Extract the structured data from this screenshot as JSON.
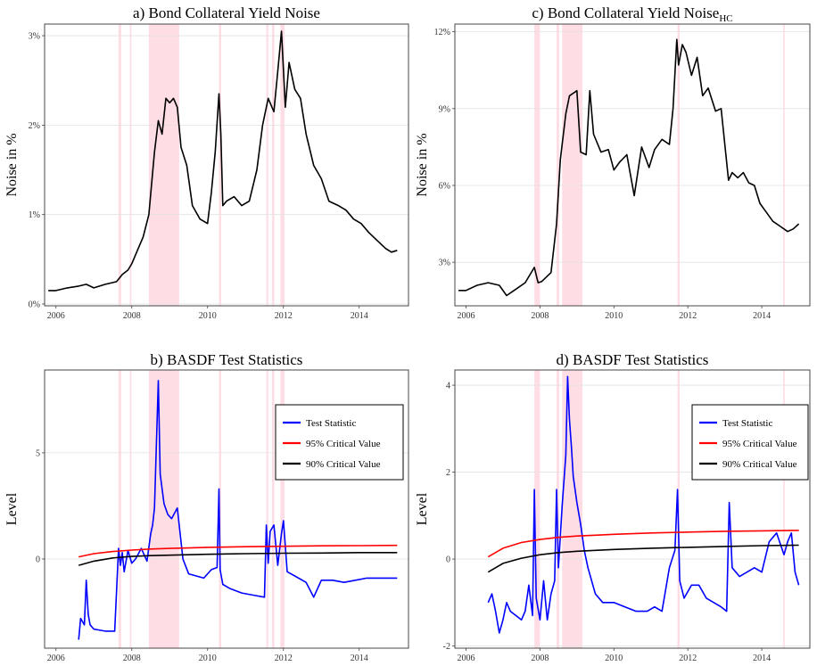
{
  "chart_data": [
    {
      "id": "a",
      "type": "line",
      "title": "a) Bond Collateral Yield Noise",
      "title_sub": "",
      "ylabel": "Noise in %",
      "xlabel": "",
      "xlim": [
        2005.7,
        2015.3
      ],
      "ylim": [
        -0.02,
        3.13
      ],
      "xticks": [
        "2006",
        "2008",
        "2010",
        "2012",
        "2014"
      ],
      "yticks": [
        "0%",
        "1%",
        "2%",
        "3%"
      ],
      "grid": true,
      "shaded_periods": [
        [
          2007.65,
          2007.72
        ],
        [
          2007.95,
          2007.99
        ],
        [
          2008.45,
          2009.25
        ],
        [
          2010.3,
          2010.36
        ],
        [
          2011.55,
          2011.6
        ],
        [
          2011.7,
          2011.76
        ],
        [
          2011.92,
          2012.03
        ]
      ],
      "series": [
        {
          "color": "#000000",
          "x": [
            2005.8,
            2006.0,
            2006.3,
            2006.6,
            2006.8,
            2007.0,
            2007.3,
            2007.6,
            2007.75,
            2007.9,
            2008.0,
            2008.15,
            2008.3,
            2008.45,
            2008.6,
            2008.7,
            2008.8,
            2008.9,
            2009.0,
            2009.1,
            2009.2,
            2009.3,
            2009.45,
            2009.6,
            2009.8,
            2010.0,
            2010.1,
            2010.2,
            2010.3,
            2010.35,
            2010.4,
            2010.5,
            2010.7,
            2010.9,
            2011.1,
            2011.3,
            2011.45,
            2011.6,
            2011.75,
            2011.85,
            2011.95,
            2012.05,
            2012.15,
            2012.3,
            2012.45,
            2012.6,
            2012.8,
            2013.0,
            2013.2,
            2013.45,
            2013.65,
            2013.85,
            2014.05,
            2014.25,
            2014.5,
            2014.7,
            2014.85,
            2015.0
          ],
          "y": [
            0.15,
            0.15,
            0.18,
            0.2,
            0.22,
            0.18,
            0.22,
            0.25,
            0.33,
            0.38,
            0.45,
            0.6,
            0.75,
            1.0,
            1.7,
            2.05,
            1.9,
            2.3,
            2.25,
            2.3,
            2.2,
            1.75,
            1.55,
            1.1,
            0.95,
            0.9,
            1.25,
            1.7,
            2.35,
            1.9,
            1.1,
            1.15,
            1.2,
            1.1,
            1.15,
            1.5,
            2.0,
            2.3,
            2.15,
            2.6,
            3.05,
            2.2,
            2.7,
            2.4,
            2.3,
            1.9,
            1.55,
            1.4,
            1.15,
            1.1,
            1.05,
            0.95,
            0.9,
            0.8,
            0.7,
            0.62,
            0.58,
            0.6
          ]
        }
      ]
    },
    {
      "id": "c",
      "type": "line",
      "title": "c) Bond Collateral Yield Noise",
      "title_sub": "HC",
      "ylabel": "Noise in %",
      "xlabel": "",
      "xlim": [
        2005.7,
        2015.3
      ],
      "ylim": [
        1.3,
        12.3
      ],
      "xticks": [
        "2006",
        "2008",
        "2010",
        "2012",
        "2014"
      ],
      "yticks": [
        "3%",
        "6%",
        "9%",
        "12%"
      ],
      "grid": true,
      "shaded_periods": [
        [
          2007.85,
          2008.0
        ],
        [
          2008.45,
          2008.52
        ],
        [
          2008.6,
          2009.15
        ],
        [
          2011.72,
          2011.78
        ],
        [
          2014.58,
          2014.62
        ]
      ],
      "series": [
        {
          "color": "#000000",
          "x": [
            2005.8,
            2006.0,
            2006.3,
            2006.6,
            2006.9,
            2007.1,
            2007.3,
            2007.6,
            2007.85,
            2007.95,
            2008.05,
            2008.3,
            2008.45,
            2008.55,
            2008.7,
            2008.8,
            2008.9,
            2009.0,
            2009.1,
            2009.25,
            2009.35,
            2009.45,
            2009.65,
            2009.85,
            2010.0,
            2010.15,
            2010.35,
            2010.55,
            2010.75,
            2010.95,
            2011.1,
            2011.3,
            2011.5,
            2011.6,
            2011.7,
            2011.75,
            2011.85,
            2011.95,
            2012.1,
            2012.25,
            2012.4,
            2012.55,
            2012.75,
            2012.9,
            2013.1,
            2013.2,
            2013.35,
            2013.5,
            2013.65,
            2013.8,
            2013.95,
            2014.1,
            2014.3,
            2014.5,
            2014.7,
            2014.85,
            2015.0
          ],
          "y": [
            1.9,
            1.9,
            2.1,
            2.2,
            2.1,
            1.7,
            1.9,
            2.2,
            2.8,
            2.2,
            2.25,
            2.6,
            4.5,
            7.0,
            8.8,
            9.5,
            9.6,
            9.7,
            7.3,
            7.2,
            9.7,
            8.0,
            7.3,
            7.4,
            6.6,
            6.9,
            7.2,
            5.6,
            7.5,
            6.7,
            7.4,
            7.8,
            7.6,
            9.0,
            11.7,
            10.7,
            11.5,
            11.2,
            10.3,
            11.0,
            9.5,
            9.8,
            8.9,
            9.0,
            6.2,
            6.5,
            6.3,
            6.5,
            6.1,
            6.0,
            5.3,
            5.0,
            4.6,
            4.4,
            4.2,
            4.3,
            4.5
          ]
        }
      ]
    },
    {
      "id": "b",
      "type": "line",
      "title": "b) BASDF Test Statistics",
      "title_sub": "",
      "ylabel": "Level",
      "xlabel": "",
      "xlim": [
        2005.7,
        2015.3
      ],
      "ylim": [
        -4.2,
        8.9
      ],
      "xticks": [
        "2006",
        "2008",
        "2010",
        "2012",
        "2014"
      ],
      "yticks": [
        "0",
        "5"
      ],
      "grid": true,
      "legend": "top-right",
      "shaded_periods": [
        [
          2007.65,
          2007.72
        ],
        [
          2007.95,
          2007.99
        ],
        [
          2008.45,
          2009.25
        ],
        [
          2010.3,
          2010.36
        ],
        [
          2011.55,
          2011.6
        ],
        [
          2011.7,
          2011.76
        ],
        [
          2011.92,
          2012.03
        ]
      ],
      "series": [
        {
          "name": "Test Statistic",
          "color": "#0000ff",
          "x": [
            2006.6,
            2006.65,
            2006.75,
            2006.8,
            2006.85,
            2006.9,
            2007.0,
            2007.3,
            2007.55,
            2007.65,
            2007.7,
            2007.75,
            2007.8,
            2007.9,
            2008.0,
            2008.1,
            2008.25,
            2008.4,
            2008.5,
            2008.55,
            2008.6,
            2008.7,
            2008.75,
            2008.85,
            2008.95,
            2009.05,
            2009.2,
            2009.35,
            2009.5,
            2009.7,
            2009.9,
            2010.1,
            2010.25,
            2010.3,
            2010.33,
            2010.4,
            2010.6,
            2010.9,
            2011.2,
            2011.5,
            2011.55,
            2011.6,
            2011.65,
            2011.75,
            2011.85,
            2011.95,
            2012.0,
            2012.1,
            2012.3,
            2012.6,
            2012.8,
            2013.0,
            2013.3,
            2013.6,
            2013.9,
            2014.2,
            2014.5,
            2014.8,
            2015.0
          ],
          "y": [
            -3.8,
            -2.8,
            -3.1,
            -1.0,
            -2.6,
            -3.1,
            -3.3,
            -3.4,
            -3.4,
            0.5,
            -0.3,
            0.3,
            -0.6,
            0.4,
            -0.2,
            0.0,
            0.5,
            -0.1,
            1.2,
            1.6,
            2.4,
            8.4,
            4.0,
            2.6,
            2.1,
            1.9,
            2.4,
            0.0,
            -0.7,
            -0.8,
            -0.9,
            -0.5,
            -0.4,
            3.3,
            -0.5,
            -1.2,
            -1.4,
            -1.6,
            -1.7,
            -1.8,
            1.6,
            -0.2,
            1.3,
            1.6,
            -0.3,
            1.2,
            1.8,
            -0.6,
            -0.8,
            -1.1,
            -1.8,
            -1.0,
            -1.0,
            -1.1,
            -1.0,
            -0.9,
            -0.9,
            -0.9,
            -0.9
          ]
        },
        {
          "name": "95% Critical Value",
          "color": "#ff0000",
          "x": [
            2006.6,
            2007.0,
            2007.5,
            2008.0,
            2008.5,
            2009.0,
            2009.5,
            2010.0,
            2011.0,
            2012.0,
            2013.0,
            2014.0,
            2015.0
          ],
          "y": [
            0.1,
            0.25,
            0.35,
            0.42,
            0.47,
            0.5,
            0.52,
            0.55,
            0.58,
            0.6,
            0.62,
            0.63,
            0.64
          ]
        },
        {
          "name": "90% Critical Value",
          "color": "#000000",
          "x": [
            2006.6,
            2007.0,
            2007.5,
            2008.0,
            2008.5,
            2009.0,
            2009.5,
            2010.0,
            2011.0,
            2012.0,
            2013.0,
            2014.0,
            2015.0
          ],
          "y": [
            -0.3,
            -0.1,
            0.05,
            0.12,
            0.16,
            0.18,
            0.2,
            0.22,
            0.25,
            0.27,
            0.28,
            0.3,
            0.3
          ]
        }
      ]
    },
    {
      "id": "d",
      "type": "line",
      "title": "d) BASDF Test Statistics",
      "title_sub": "",
      "ylabel": "Level",
      "xlabel": "",
      "xlim": [
        2005.7,
        2015.3
      ],
      "ylim": [
        -2.05,
        4.35
      ],
      "xticks": [
        "2006",
        "2008",
        "2010",
        "2012",
        "2014"
      ],
      "yticks": [
        "-2",
        "0",
        "2",
        "4"
      ],
      "grid": true,
      "legend": "top-right",
      "shaded_periods": [
        [
          2007.85,
          2008.0
        ],
        [
          2008.45,
          2008.52
        ],
        [
          2008.6,
          2009.15
        ],
        [
          2011.72,
          2011.78
        ],
        [
          2014.58,
          2014.62
        ]
      ],
      "series": [
        {
          "name": "Test Statistic",
          "color": "#0000ff",
          "x": [
            2006.6,
            2006.7,
            2006.8,
            2006.9,
            2007.0,
            2007.1,
            2007.2,
            2007.35,
            2007.5,
            2007.6,
            2007.7,
            2007.8,
            2007.85,
            2007.9,
            2008.0,
            2008.1,
            2008.2,
            2008.3,
            2008.4,
            2008.45,
            2008.5,
            2008.6,
            2008.7,
            2008.75,
            2008.8,
            2008.85,
            2008.9,
            2009.0,
            2009.1,
            2009.2,
            2009.3,
            2009.5,
            2009.7,
            2010.0,
            2010.3,
            2010.6,
            2010.9,
            2011.1,
            2011.3,
            2011.5,
            2011.65,
            2011.72,
            2011.78,
            2011.9,
            2012.1,
            2012.3,
            2012.5,
            2012.7,
            2012.9,
            2013.05,
            2013.12,
            2013.2,
            2013.4,
            2013.6,
            2013.8,
            2014.0,
            2014.2,
            2014.4,
            2014.6,
            2014.7,
            2014.8,
            2014.9,
            2015.0
          ],
          "y": [
            -1.0,
            -0.8,
            -1.2,
            -1.7,
            -1.4,
            -1.0,
            -1.2,
            -1.3,
            -1.4,
            -1.2,
            -0.6,
            -1.3,
            1.6,
            -0.9,
            -1.4,
            -0.5,
            -1.4,
            -0.8,
            -0.5,
            1.6,
            -0.2,
            1.2,
            2.4,
            4.2,
            3.2,
            2.6,
            1.9,
            1.3,
            0.8,
            0.2,
            -0.2,
            -0.8,
            -1.0,
            -1.0,
            -1.1,
            -1.2,
            -1.2,
            -1.1,
            -1.2,
            -0.2,
            0.2,
            1.6,
            -0.5,
            -0.9,
            -0.6,
            -0.6,
            -0.9,
            -1.0,
            -1.1,
            -1.2,
            1.3,
            -0.2,
            -0.4,
            -0.3,
            -0.2,
            -0.3,
            0.4,
            0.6,
            0.1,
            0.4,
            0.6,
            -0.3,
            -0.6
          ]
        },
        {
          "name": "95% Critical Value",
          "color": "#ff0000",
          "x": [
            2006.6,
            2007.0,
            2007.5,
            2008.0,
            2008.5,
            2009.0,
            2009.5,
            2010.0,
            2011.0,
            2012.0,
            2013.0,
            2014.0,
            2015.0
          ],
          "y": [
            0.05,
            0.25,
            0.38,
            0.45,
            0.5,
            0.53,
            0.55,
            0.57,
            0.6,
            0.62,
            0.64,
            0.65,
            0.66
          ]
        },
        {
          "name": "90% Critical Value",
          "color": "#000000",
          "x": [
            2006.6,
            2007.0,
            2007.5,
            2008.0,
            2008.5,
            2009.0,
            2009.5,
            2010.0,
            2011.0,
            2012.0,
            2013.0,
            2014.0,
            2015.0
          ],
          "y": [
            -0.3,
            -0.1,
            0.02,
            0.1,
            0.15,
            0.18,
            0.2,
            0.22,
            0.25,
            0.27,
            0.29,
            0.31,
            0.32
          ]
        }
      ]
    }
  ]
}
